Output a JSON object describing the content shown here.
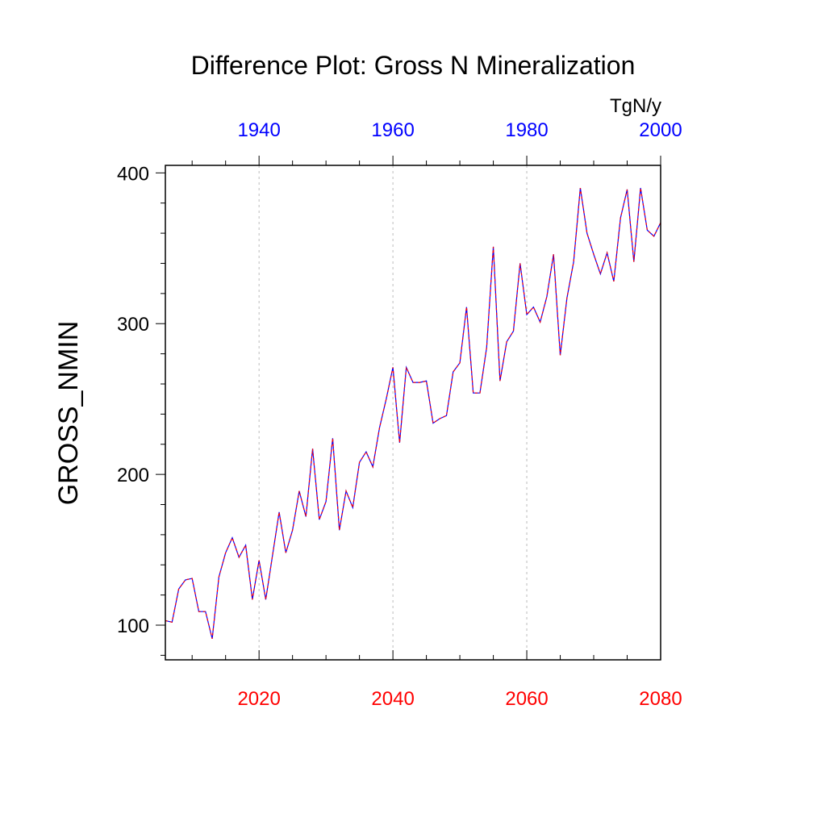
{
  "chart_data": {
    "type": "line",
    "title": "Difference Plot: Gross N Mineralization",
    "ylabel": "GROSS_NMIN",
    "units": "TgN/y",
    "xlim": [
      2006,
      2080
    ],
    "ylim": [
      77,
      405
    ],
    "bottom_axis": {
      "ticks": [
        2020,
        2040,
        2060,
        2080
      ],
      "tick_labels": [
        "2020",
        "2040",
        "2060",
        "2080"
      ],
      "color": "#ff0000"
    },
    "top_axis": {
      "ticks": [
        1940,
        1960,
        1980,
        2000
      ],
      "tick_labels": [
        "1940",
        "1960",
        "1980",
        "2000"
      ],
      "offset_years": 80,
      "color": "#0000ff"
    },
    "y_ticks": [
      100,
      200,
      300,
      400
    ],
    "y_tick_labels": [
      "100",
      "200",
      "300",
      "400"
    ],
    "gridlines_x": [
      2020,
      2040,
      2060
    ],
    "series": [
      {
        "name": "GROSS_NMIN difference",
        "color": "#0000ff",
        "dash_color": "#ff0000",
        "x": [
          2006,
          2007,
          2008,
          2009,
          2010,
          2011,
          2012,
          2013,
          2014,
          2015,
          2016,
          2017,
          2018,
          2019,
          2020,
          2021,
          2022,
          2023,
          2024,
          2025,
          2026,
          2027,
          2028,
          2029,
          2030,
          2031,
          2032,
          2033,
          2034,
          2035,
          2036,
          2037,
          2038,
          2039,
          2040,
          2041,
          2042,
          2043,
          2044,
          2045,
          2046,
          2047,
          2048,
          2049,
          2050,
          2051,
          2052,
          2053,
          2054,
          2055,
          2056,
          2057,
          2058,
          2059,
          2060,
          2061,
          2062,
          2063,
          2064,
          2065,
          2066,
          2067,
          2068,
          2069,
          2070,
          2071,
          2072,
          2073,
          2074,
          2075,
          2076,
          2077,
          2078,
          2079,
          2080
        ],
        "values": [
          103,
          102,
          124,
          130,
          131,
          109,
          109,
          91,
          132,
          148,
          158,
          145,
          153,
          117,
          143,
          117,
          146,
          175,
          148,
          163,
          189,
          172,
          217,
          170,
          182,
          224,
          163,
          189,
          178,
          208,
          215,
          205,
          231,
          250,
          271,
          221,
          271,
          261,
          261,
          262,
          234,
          237,
          239,
          268,
          274,
          311,
          254,
          254,
          284,
          351,
          262,
          288,
          295,
          340,
          306,
          311,
          301,
          318,
          346,
          279,
          317,
          341,
          390,
          360,
          346,
          333,
          347,
          328,
          370,
          389,
          341,
          390,
          362,
          358,
          367
        ]
      }
    ]
  }
}
